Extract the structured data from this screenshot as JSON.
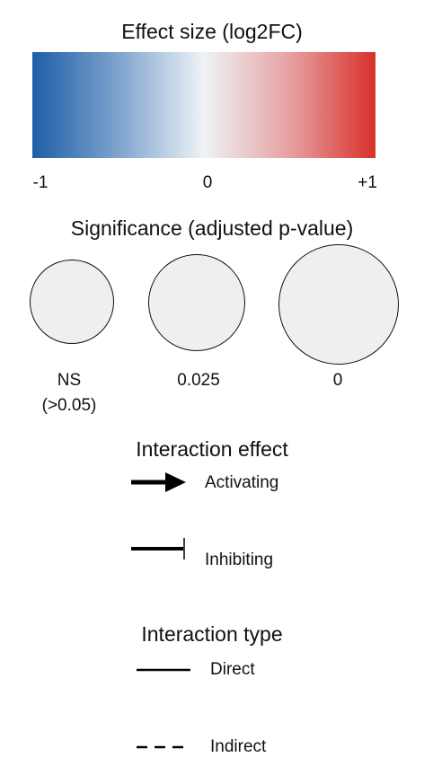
{
  "effect_size": {
    "title": "Effect size (log2FC)",
    "tick_min": "-1",
    "tick_mid": "0",
    "tick_max": "+1",
    "color_low": "#1e5ea8",
    "color_mid": "#eef3f6",
    "color_high": "#d8302a"
  },
  "significance": {
    "title": "Significance (adjusted p-value)",
    "items": [
      {
        "label_line1": "NS",
        "label_line2": "(>0.05)"
      },
      {
        "label_line1": "0.025"
      },
      {
        "label_line1": "0"
      }
    ],
    "circle_fill": "#efefef"
  },
  "interaction_effect": {
    "title": "Interaction effect",
    "activating_label": "Activating",
    "inhibiting_label": "Inhibiting"
  },
  "interaction_type": {
    "title": "Interaction type",
    "direct_label": "Direct",
    "indirect_label": "Indirect"
  }
}
